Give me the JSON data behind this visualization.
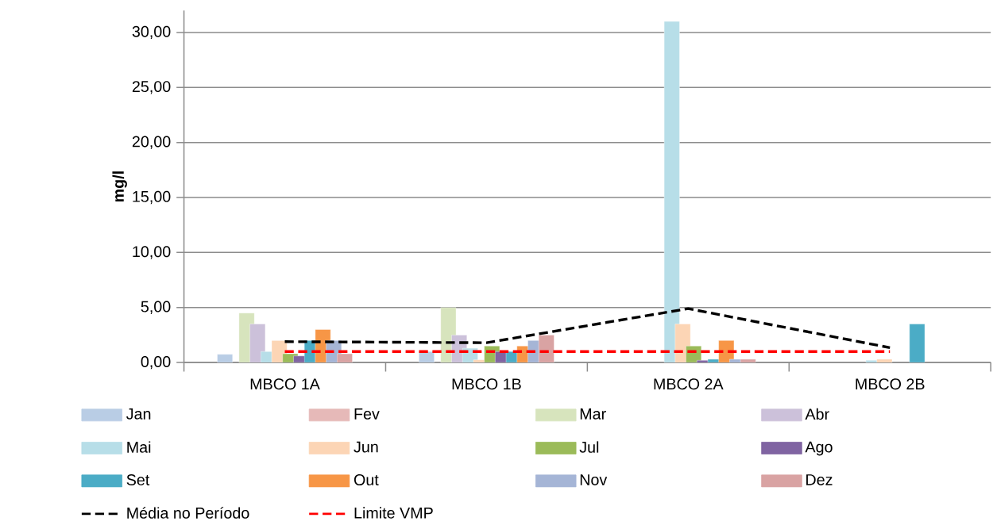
{
  "chart_data": {
    "type": "bar",
    "ylabel": "mg/l",
    "categories": [
      "MBCO 1A",
      "MBCO 1B",
      "MBCO 2A",
      "MBCO 2B"
    ],
    "ylim": [
      0,
      32
    ],
    "yticks": [
      {
        "value": 0,
        "label": "0,00"
      },
      {
        "value": 5,
        "label": "5,00"
      },
      {
        "value": 10,
        "label": "10,00"
      },
      {
        "value": 15,
        "label": "15,00"
      },
      {
        "value": 20,
        "label": "20,00"
      },
      {
        "value": 25,
        "label": "25,00"
      },
      {
        "value": 30,
        "label": "30,00"
      }
    ],
    "grid": "y",
    "legend": "bottom",
    "series": [
      {
        "name": "Jan",
        "color": "#b9cde5",
        "values": [
          0.75,
          1.0,
          null,
          null
        ]
      },
      {
        "name": "Fev",
        "color": "#e6b9b8",
        "values": [
          null,
          null,
          null,
          null
        ]
      },
      {
        "name": "Mar",
        "color": "#d7e4bd",
        "values": [
          4.5,
          5.0,
          null,
          null
        ]
      },
      {
        "name": "Abr",
        "color": "#ccc1da",
        "values": [
          3.5,
          2.5,
          null,
          null
        ]
      },
      {
        "name": "Mai",
        "color": "#b7dee8",
        "values": [
          1.0,
          1.3,
          31.0,
          0.2
        ]
      },
      {
        "name": "Jun",
        "color": "#fcd5b5",
        "values": [
          2.0,
          0.25,
          3.5,
          0.3
        ]
      },
      {
        "name": "Jul",
        "color": "#9bbb59",
        "values": [
          0.8,
          1.5,
          1.5,
          null
        ]
      },
      {
        "name": "Ago",
        "color": "#8064a2",
        "values": [
          0.6,
          1.0,
          0.2,
          null
        ]
      },
      {
        "name": "Set",
        "color": "#4bacc6",
        "values": [
          2.0,
          1.0,
          0.3,
          3.5
        ]
      },
      {
        "name": "Out",
        "color": "#f79646",
        "values": [
          3.0,
          1.5,
          2.0,
          null
        ]
      },
      {
        "name": "Nov",
        "color": "#a5b5d6",
        "values": [
          2.0,
          2.0,
          0.3,
          null
        ]
      },
      {
        "name": "Dez",
        "color": "#d9a3a3",
        "values": [
          0.8,
          2.5,
          0.3,
          null
        ]
      },
      {
        "name": "Média no Período",
        "type": "line",
        "line_style": "dashed",
        "color": "#000000",
        "values": [
          1.9,
          1.8,
          4.9,
          1.35
        ]
      },
      {
        "name": "Limite VMP",
        "type": "line",
        "line_style": "dashed",
        "color": "#ff0000",
        "values": [
          1.0,
          1.0,
          1.0,
          1.0
        ]
      }
    ]
  }
}
